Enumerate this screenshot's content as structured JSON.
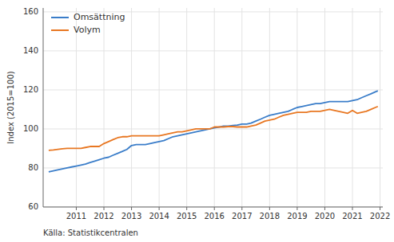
{
  "chart_data": {
    "type": "line",
    "ylabel": "Index (2015=100)",
    "annotations": [
      "Källa: Statistikcentralen"
    ],
    "xlim": [
      2009.8,
      2022.1
    ],
    "ylim": [
      60,
      162
    ],
    "yticks": [
      60,
      80,
      100,
      120,
      140,
      160
    ],
    "xticks": [
      2011,
      2012,
      2013,
      2014,
      2015,
      2016,
      2017,
      2018,
      2019,
      2020,
      2021,
      2022
    ],
    "grid": true,
    "legend": "upper left",
    "x": [
      2010.0,
      2010.17,
      2010.33,
      2010.5,
      2010.67,
      2010.83,
      2011.0,
      2011.17,
      2011.33,
      2011.5,
      2011.67,
      2011.83,
      2012.0,
      2012.17,
      2012.33,
      2012.5,
      2012.67,
      2012.83,
      2013.0,
      2013.17,
      2013.33,
      2013.5,
      2013.67,
      2013.83,
      2014.0,
      2014.17,
      2014.33,
      2014.5,
      2014.67,
      2014.83,
      2015.0,
      2015.17,
      2015.33,
      2015.5,
      2015.67,
      2015.83,
      2016.0,
      2016.17,
      2016.33,
      2016.5,
      2016.67,
      2016.83,
      2017.0,
      2017.17,
      2017.33,
      2017.5,
      2017.67,
      2017.83,
      2018.0,
      2018.17,
      2018.33,
      2018.5,
      2018.67,
      2018.83,
      2019.0,
      2019.17,
      2019.33,
      2019.5,
      2019.67,
      2019.83,
      2020.0,
      2020.17,
      2020.33,
      2020.5,
      2020.67,
      2020.83,
      2021.0,
      2021.17,
      2021.33,
      2021.5,
      2021.67,
      2021.83,
      2021.92
    ],
    "series": [
      {
        "name": "Omsättning",
        "color": "#3A7DC9",
        "values": [
          78.0,
          78.5,
          79.0,
          79.5,
          80.0,
          80.5,
          81.0,
          81.5,
          82.0,
          82.8,
          83.5,
          84.2,
          85.0,
          85.5,
          86.5,
          87.5,
          88.5,
          89.5,
          91.5,
          92.0,
          92.0,
          92.0,
          92.5,
          93.0,
          93.5,
          94.0,
          95.0,
          96.0,
          96.5,
          97.0,
          97.5,
          98.0,
          98.5,
          99.0,
          99.5,
          100.0,
          100.5,
          101.0,
          101.5,
          101.5,
          101.8,
          102.0,
          102.5,
          102.5,
          103.0,
          104.0,
          105.0,
          106.0,
          107.0,
          107.5,
          108.0,
          108.5,
          109.0,
          110.0,
          111.0,
          111.5,
          112.0,
          112.5,
          113.0,
          113.0,
          113.5,
          114.0,
          114.0,
          114.0,
          114.0,
          114.0,
          114.5,
          115.0,
          116.0,
          117.0,
          118.0,
          119.0,
          119.5
        ]
      },
      {
        "name": "Volym",
        "color": "#E87722",
        "values": [
          89.0,
          89.2,
          89.5,
          89.8,
          90.0,
          90.0,
          90.0,
          90.0,
          90.5,
          91.0,
          91.0,
          91.0,
          92.5,
          93.5,
          94.5,
          95.5,
          96.0,
          96.0,
          96.5,
          96.5,
          96.5,
          96.5,
          96.5,
          96.5,
          96.5,
          97.0,
          97.5,
          98.0,
          98.5,
          98.5,
          99.0,
          99.5,
          100.0,
          100.0,
          100.0,
          100.0,
          101.0,
          101.0,
          101.0,
          101.2,
          101.2,
          101.0,
          101.0,
          101.0,
          101.5,
          102.0,
          103.0,
          104.0,
          104.5,
          105.0,
          106.0,
          107.0,
          107.5,
          108.0,
          108.5,
          108.5,
          108.5,
          109.0,
          109.0,
          109.0,
          109.5,
          110.0,
          109.5,
          109.0,
          108.5,
          108.0,
          109.5,
          108.0,
          108.5,
          109.0,
          110.0,
          111.0,
          111.5
        ]
      }
    ]
  }
}
